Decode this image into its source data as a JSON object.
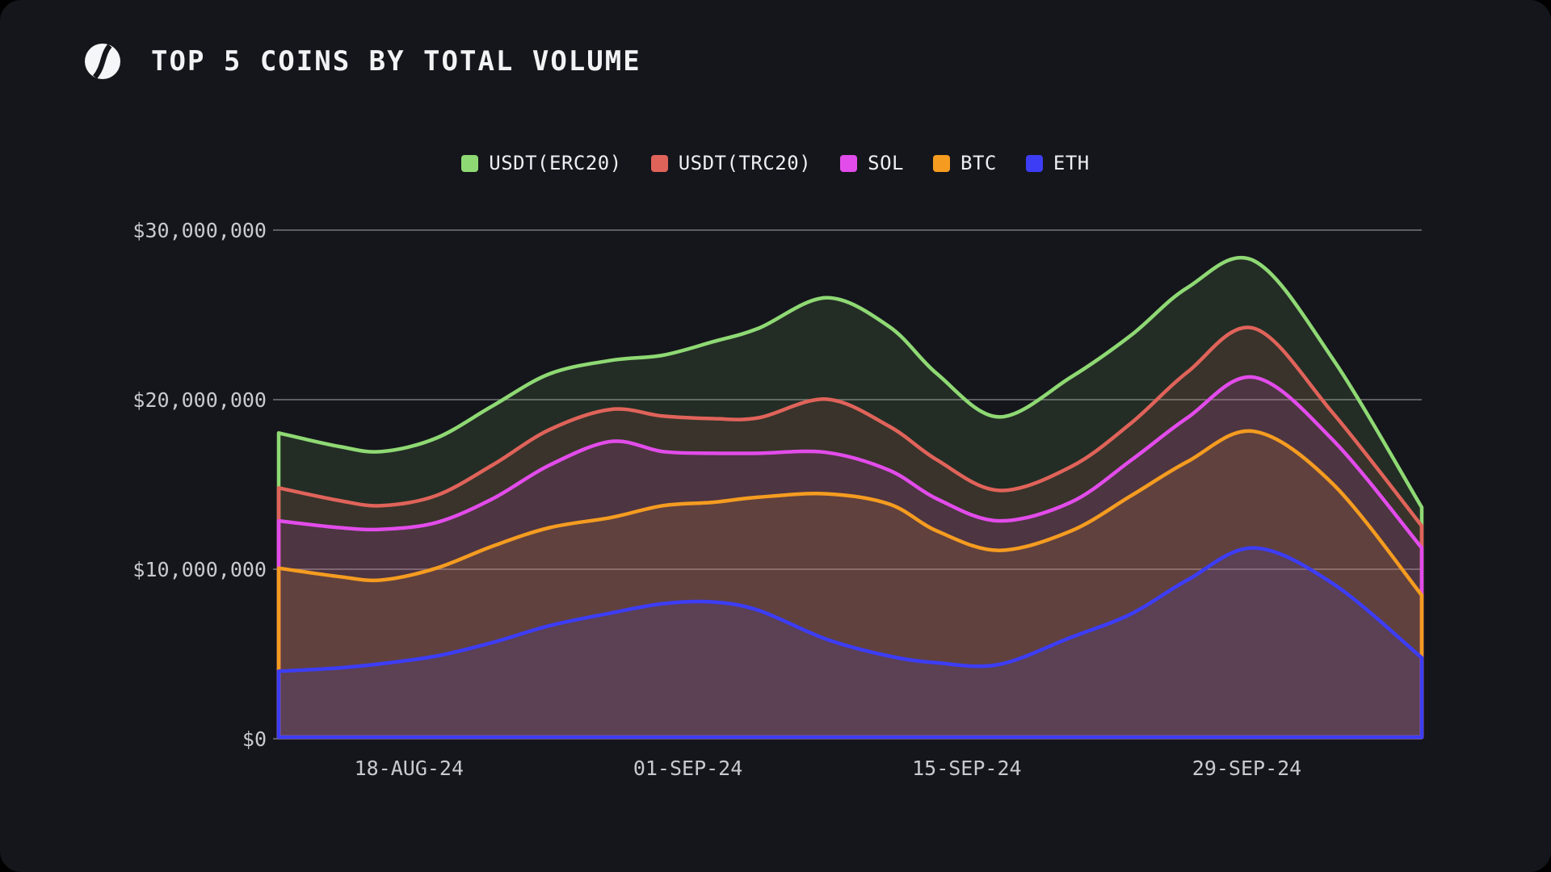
{
  "header": {
    "title": "TOP 5 COINS BY TOTAL VOLUME",
    "logo_icon": "slashed-circle"
  },
  "colors": {
    "background": "#15161b",
    "title_text": "#f2f3f5",
    "axis_text": "#c7cad0",
    "gridline": "rgba(255,255,255,0.42)",
    "usdt_erc20": "#8fd974",
    "usdt_trc20": "#e0635a",
    "sol": "#e24cea",
    "btc": "#f59c20",
    "eth": "#3d3df5"
  },
  "chart_data": {
    "type": "area",
    "stacked": true,
    "unit": "USD millions",
    "title": "TOP 5 COINS BY TOTAL VOLUME",
    "grid": true,
    "legend_position": "top-center",
    "fill_opacity": 0.12,
    "ylim": [
      0,
      31
    ],
    "y_ticks": [
      {
        "label": "$0",
        "value": 0
      },
      {
        "label": "$10,000,000",
        "value": 10
      },
      {
        "label": "$20,000,000",
        "value": 20
      },
      {
        "label": "$30,000,000",
        "value": 30
      }
    ],
    "x_tick_labels": [
      "18-AUG-24",
      "01-SEP-24",
      "15-SEP-24",
      "29-SEP-24"
    ],
    "x_tick_t": [
      0.114,
      0.358,
      0.602,
      0.847
    ],
    "t": [
      0,
      0.053,
      0.09,
      0.138,
      0.187,
      0.237,
      0.291,
      0.336,
      0.38,
      0.42,
      0.479,
      0.534,
      0.576,
      0.63,
      0.693,
      0.746,
      0.795,
      0.853,
      0.922,
      1
    ],
    "series": [
      {
        "name": "ETH",
        "color": "#3d3df5",
        "values": [
          3.9,
          4.1,
          4.35,
          4.8,
          5.6,
          6.6,
          7.35,
          7.9,
          8.0,
          7.5,
          5.8,
          4.8,
          4.4,
          4.3,
          5.9,
          7.3,
          9.3,
          11.2,
          9.1,
          4.7
        ]
      },
      {
        "name": "BTC",
        "color": "#f59c20",
        "values": [
          6.1,
          5.4,
          4.95,
          5.2,
          5.7,
          5.8,
          5.65,
          5.8,
          5.9,
          6.7,
          8.6,
          9.0,
          7.8,
          6.75,
          6.3,
          7.0,
          7.0,
          6.9,
          5.9,
          3.7
        ]
      },
      {
        "name": "SOL",
        "color": "#e24cea",
        "values": [
          2.8,
          2.9,
          3.0,
          2.7,
          2.8,
          3.7,
          4.5,
          3.2,
          2.9,
          2.6,
          2.45,
          2.0,
          1.9,
          1.75,
          1.7,
          2.1,
          2.6,
          3.2,
          2.6,
          2.8
        ]
      },
      {
        "name": "USDT(TRC20)",
        "color": "#e0635a",
        "values": [
          1.95,
          1.6,
          1.4,
          1.6,
          2.0,
          2.1,
          1.9,
          2.1,
          2.05,
          2.1,
          3.15,
          2.6,
          2.3,
          1.8,
          2.1,
          2.2,
          2.7,
          2.9,
          1.6,
          1.3
        ]
      },
      {
        "name": "USDT(ERC20)",
        "color": "#8fd974",
        "values": [
          3.25,
          3.2,
          3.2,
          3.4,
          3.5,
          3.3,
          2.9,
          3.6,
          4.55,
          5.3,
          6.0,
          5.9,
          5.1,
          4.35,
          5.3,
          5.2,
          5.0,
          4.0,
          3.2,
          1.1
        ]
      }
    ],
    "legend_order": [
      "USDT(ERC20)",
      "USDT(TRC20)",
      "SOL",
      "BTC",
      "ETH"
    ]
  }
}
